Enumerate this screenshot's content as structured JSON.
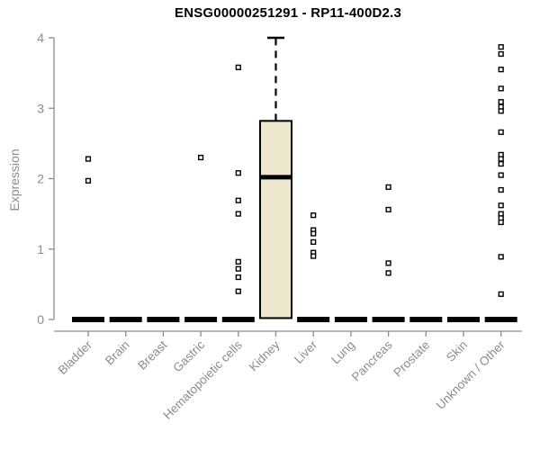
{
  "chart_data": {
    "type": "boxplot",
    "title": "ENSG00000251291 - RP11-400D2.3",
    "ylabel": "Expression",
    "xlabel": "",
    "ylim": [
      0,
      4
    ],
    "yticks": [
      0,
      1,
      2,
      3,
      4
    ],
    "grid": false,
    "legend": "none",
    "categories": [
      "Bladder",
      "Brain",
      "Breast",
      "Gastric",
      "Hematopoietic cells",
      "Kidney",
      "Liver",
      "Lung",
      "Pancreas",
      "Prostate",
      "Skin",
      "Unknown / Other"
    ],
    "boxes": [
      {
        "category": "Bladder",
        "median": 0,
        "q1": 0,
        "q3": 0,
        "whisker_low": 0,
        "whisker_high": 0,
        "outliers": [
          2.28,
          1.97
        ]
      },
      {
        "category": "Brain",
        "median": 0,
        "q1": 0,
        "q3": 0,
        "whisker_low": 0,
        "whisker_high": 0,
        "outliers": []
      },
      {
        "category": "Breast",
        "median": 0,
        "q1": 0,
        "q3": 0,
        "whisker_low": 0,
        "whisker_high": 0,
        "outliers": []
      },
      {
        "category": "Gastric",
        "median": 0,
        "q1": 0,
        "q3": 0,
        "whisker_low": 0,
        "whisker_high": 0,
        "outliers": [
          2.3
        ]
      },
      {
        "category": "Hematopoietic cells",
        "median": 0,
        "q1": 0,
        "q3": 0,
        "whisker_low": 0,
        "whisker_high": 0,
        "outliers": [
          3.58,
          2.08,
          1.69,
          1.5,
          0.82,
          0.72,
          0.6,
          0.4
        ]
      },
      {
        "category": "Kidney",
        "median": 2.02,
        "q1": 0.02,
        "q3": 2.82,
        "whisker_low": 0.02,
        "whisker_high": 4.0,
        "outliers": []
      },
      {
        "category": "Liver",
        "median": 0,
        "q1": 0,
        "q3": 0,
        "whisker_low": 0,
        "whisker_high": 0,
        "outliers": [
          1.48,
          1.27,
          1.22,
          1.1,
          0.95,
          0.9
        ]
      },
      {
        "category": "Lung",
        "median": 0,
        "q1": 0,
        "q3": 0,
        "whisker_low": 0,
        "whisker_high": 0,
        "outliers": []
      },
      {
        "category": "Pancreas",
        "median": 0,
        "q1": 0,
        "q3": 0,
        "whisker_low": 0,
        "whisker_high": 0,
        "outliers": [
          1.88,
          1.56,
          0.8,
          0.66
        ]
      },
      {
        "category": "Prostate",
        "median": 0,
        "q1": 0,
        "q3": 0,
        "whisker_low": 0,
        "whisker_high": 0,
        "outliers": []
      },
      {
        "category": "Skin",
        "median": 0,
        "q1": 0,
        "q3": 0,
        "whisker_low": 0,
        "whisker_high": 0,
        "outliers": []
      },
      {
        "category": "Unknown / Other",
        "median": 0,
        "q1": 0,
        "q3": 0,
        "whisker_low": 0,
        "whisker_high": 0,
        "outliers": [
          3.87,
          3.77,
          3.55,
          3.28,
          3.09,
          3.02,
          2.96,
          2.66,
          2.34,
          2.28,
          2.21,
          2.05,
          1.84,
          1.62,
          1.5,
          1.44,
          1.38,
          0.89,
          0.36
        ]
      }
    ],
    "colors": {
      "box_fill": "#EDE8CD",
      "box_line": "#000000",
      "median_line": "#000000",
      "outlier_stroke": "#000000",
      "outlier_fill": "#FFFFFF",
      "axis": "#8c8c8c",
      "tick_label": "#8c8c8c",
      "title": "#000000"
    }
  }
}
